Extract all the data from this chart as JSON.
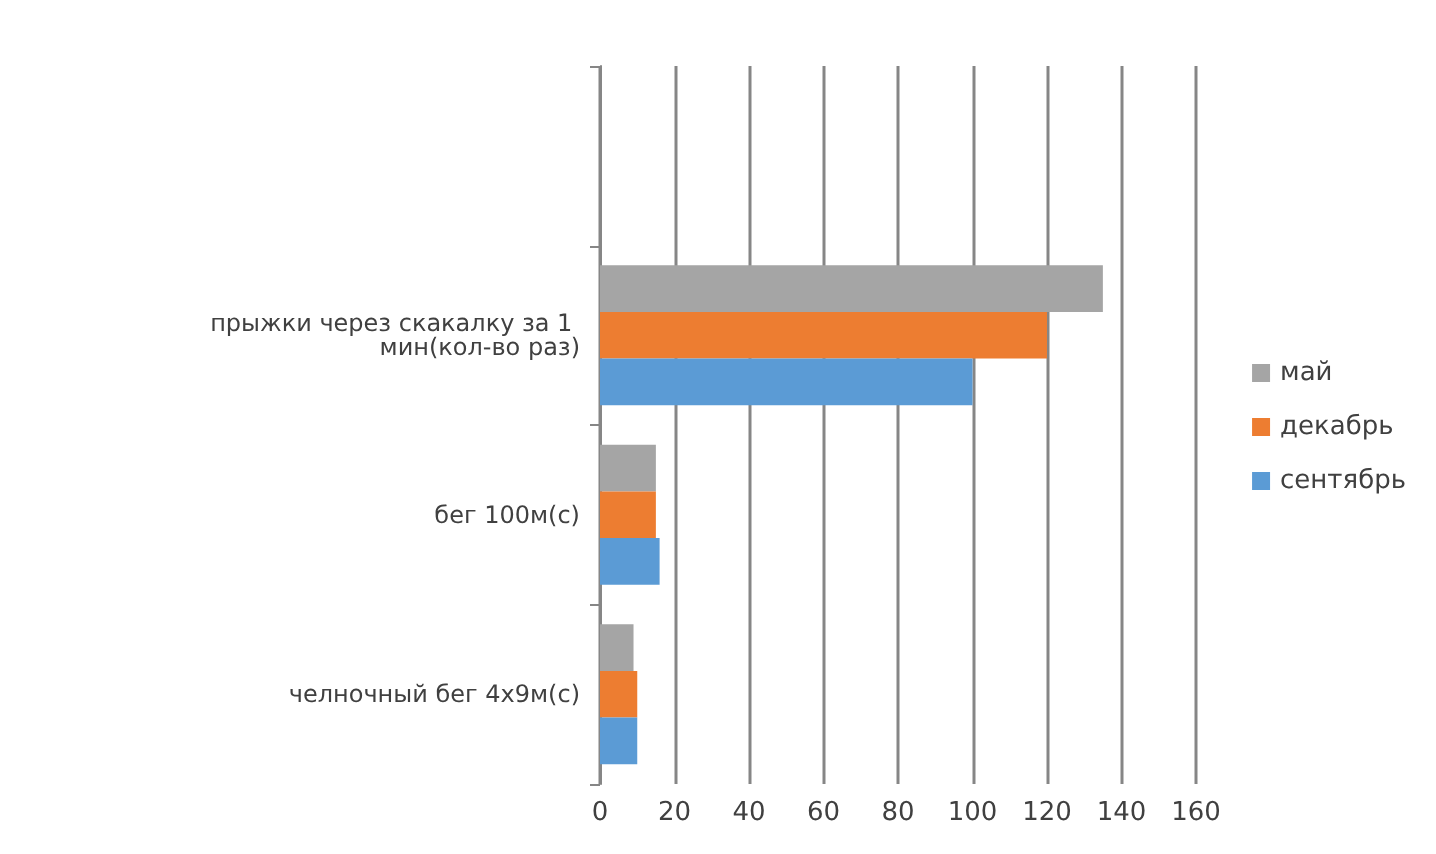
{
  "chart_data": {
    "type": "bar",
    "orientation": "horizontal",
    "categories": [
      null,
      "прыжки через скакалку за 1 мин(кол-во раз)",
      "бег 100м(с)",
      "челночный бег 4х9м(с)"
    ],
    "series": [
      {
        "name": "май",
        "color": "#a5a5a5",
        "values": [
          null,
          135,
          15,
          9
        ]
      },
      {
        "name": "декабрь",
        "color": "#ed7d31",
        "values": [
          null,
          120,
          15,
          10
        ]
      },
      {
        "name": "сентябрь",
        "color": "#5b9bd5",
        "values": [
          null,
          100,
          16,
          10
        ]
      }
    ],
    "xlim": [
      0,
      160
    ],
    "xticks": [
      0,
      20,
      40,
      60,
      80,
      100,
      120,
      140,
      160
    ],
    "grid": "x",
    "legend": "right"
  }
}
